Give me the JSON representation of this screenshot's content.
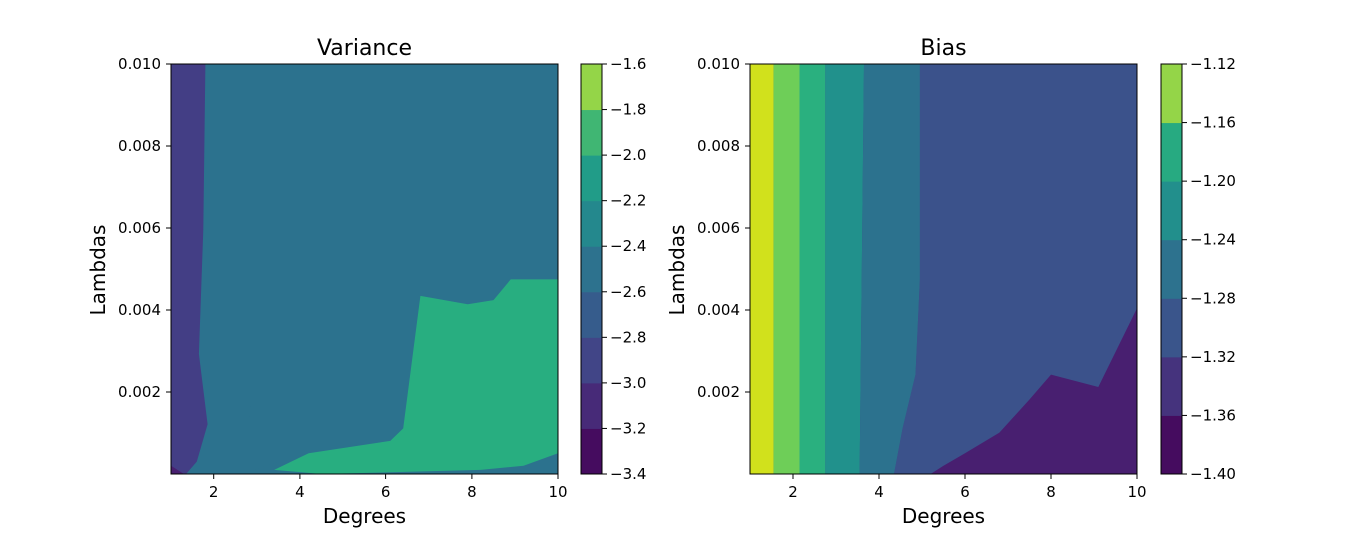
{
  "chart_data": [
    {
      "type": "contour",
      "title": "Variance",
      "xlabel": "Degrees",
      "ylabel": "Lambdas",
      "xlim": [
        1,
        10
      ],
      "ylim": [
        0.0001,
        0.01
      ],
      "xticks": [
        "2",
        "4",
        "6",
        "8",
        "10"
      ],
      "yticks": [
        "0.002",
        "0.004",
        "0.006",
        "0.008",
        "0.010"
      ],
      "colorbar": {
        "levels": [
          -3.4,
          -3.2,
          -3.0,
          -2.8,
          -2.6,
          -2.4,
          -2.2,
          -2.0,
          -1.8,
          -1.6
        ],
        "tick_labels": [
          "−3.4",
          "−3.2",
          "−3.0",
          "−2.8",
          "−2.6",
          "−2.4",
          "−2.2",
          "−2.0",
          "−1.8",
          "−1.6"
        ],
        "colormap": "viridis"
      },
      "regions": [
        {
          "band": [
            -3.2,
            -3.0
          ],
          "color": "#433e85",
          "poly": [
            [
              1,
              0.01
            ],
            [
              1.8,
              0.01
            ],
            [
              1.75,
              0.006
            ],
            [
              1.65,
              0.003
            ],
            [
              1.85,
              0.0013
            ],
            [
              1.6,
              0.0004
            ],
            [
              1.35,
              0.0001
            ],
            [
              1,
              0.0001
            ]
          ]
        },
        {
          "band": [
            -3.4,
            -3.2
          ],
          "color": "#481f70",
          "poly": [
            [
              1,
              0.0003
            ],
            [
              1.3,
              0.0001
            ],
            [
              1,
              0.0001
            ]
          ]
        },
        {
          "band": [
            -2.8,
            -2.6
          ],
          "color": "#2c728e",
          "poly": [
            [
              2.8,
              0.01
            ],
            [
              8.9,
              0.01
            ],
            [
              8.9,
              0.0048
            ],
            [
              8.5,
              0.0043
            ],
            [
              7.9,
              0.0042
            ],
            [
              6.8,
              0.0044
            ],
            [
              6.4,
              0.0012
            ],
            [
              6.1,
              0.0009
            ],
            [
              4.2,
              0.0006
            ],
            [
              3.2,
              0.0003
            ],
            [
              2.7,
              0.0001
            ],
            [
              2.9,
              0.0023
            ],
            [
              2.75,
              0.006
            ]
          ]
        },
        {
          "band": [
            -2.4,
            -2.2
          ],
          "color": "#28ae80",
          "poly": [
            [
              6.8,
              0.0044
            ],
            [
              7.9,
              0.0042
            ],
            [
              8.5,
              0.0043
            ],
            [
              8.9,
              0.0048
            ],
            [
              10,
              0.0048
            ],
            [
              10,
              0.0006
            ],
            [
              9.2,
              0.0003
            ],
            [
              8.2,
              0.0002
            ],
            [
              4.5,
              0.0001
            ],
            [
              3.4,
              0.0002
            ],
            [
              4.2,
              0.0006
            ],
            [
              6.1,
              0.0009
            ],
            [
              6.4,
              0.0012
            ]
          ]
        }
      ]
    },
    {
      "type": "contour",
      "title": "Bias",
      "xlabel": "Degrees",
      "ylabel": "Lambdas",
      "xlim": [
        1,
        10
      ],
      "ylim": [
        0.0001,
        0.01
      ],
      "xticks": [
        "2",
        "4",
        "6",
        "8",
        "10"
      ],
      "yticks": [
        "0.002",
        "0.004",
        "0.006",
        "0.008",
        "0.010"
      ],
      "colorbar": {
        "levels": [
          -1.4,
          -1.36,
          -1.32,
          -1.28,
          -1.24,
          -1.2,
          -1.16,
          -1.12
        ],
        "tick_labels": [
          "−1.40",
          "−1.36",
          "−1.32",
          "−1.28",
          "−1.24",
          "−1.20",
          "−1.16",
          "−1.12"
        ],
        "colormap": "viridis"
      },
      "regions": [
        {
          "band": [
            -1.16,
            -1.12
          ],
          "color": "#d1e11c",
          "poly": [
            [
              1,
              0.01
            ],
            [
              1.55,
              0.01
            ],
            [
              1.55,
              0.0001
            ],
            [
              1,
              0.0001
            ]
          ]
        },
        {
          "band": [
            -1.2,
            -1.16
          ],
          "color": "#6ece58",
          "poly": [
            [
              1.55,
              0.01
            ],
            [
              2.15,
              0.01
            ],
            [
              2.15,
              0.0001
            ],
            [
              1.55,
              0.0001
            ]
          ]
        },
        {
          "band": [
            -1.24,
            -1.2
          ],
          "color": "#2ab07f",
          "poly": [
            [
              2.15,
              0.01
            ],
            [
              2.75,
              0.01
            ],
            [
              2.75,
              0.0001
            ],
            [
              2.15,
              0.0001
            ]
          ]
        },
        {
          "band": [
            -1.28,
            -1.24
          ],
          "color": "#21918c",
          "poly": [
            [
              2.75,
              0.01
            ],
            [
              3.65,
              0.01
            ],
            [
              3.55,
              0.0001
            ],
            [
              2.75,
              0.0001
            ]
          ]
        },
        {
          "band": [
            -1.32,
            -1.28
          ],
          "color": "#2c728e",
          "poly": [
            [
              3.65,
              0.01
            ],
            [
              4.95,
              0.01
            ],
            [
              4.95,
              0.0048
            ],
            [
              4.85,
              0.0025
            ],
            [
              4.55,
              0.0012
            ],
            [
              4.35,
              0.0001
            ],
            [
              3.55,
              0.0001
            ]
          ]
        },
        {
          "band": [
            -1.36,
            -1.32
          ],
          "color": "#3b528b",
          "poly": [
            [
              4.95,
              0.01
            ],
            [
              10,
              0.01
            ],
            [
              10,
              0.0001
            ],
            [
              4.35,
              0.0001
            ],
            [
              4.55,
              0.0012
            ],
            [
              4.85,
              0.0025
            ],
            [
              4.95,
              0.0048
            ]
          ]
        },
        {
          "band": [
            -1.4,
            -1.36
          ],
          "color": "#481f70",
          "poly": [
            [
              10,
              0.0041
            ],
            [
              9.1,
              0.0022
            ],
            [
              8,
              0.0025
            ],
            [
              7.5,
              0.0019
            ],
            [
              6.8,
              0.0011
            ],
            [
              6,
              0.0006
            ],
            [
              5.5,
              0.0003
            ],
            [
              5.2,
              0.0001
            ],
            [
              10,
              0.0001
            ]
          ]
        }
      ]
    }
  ]
}
